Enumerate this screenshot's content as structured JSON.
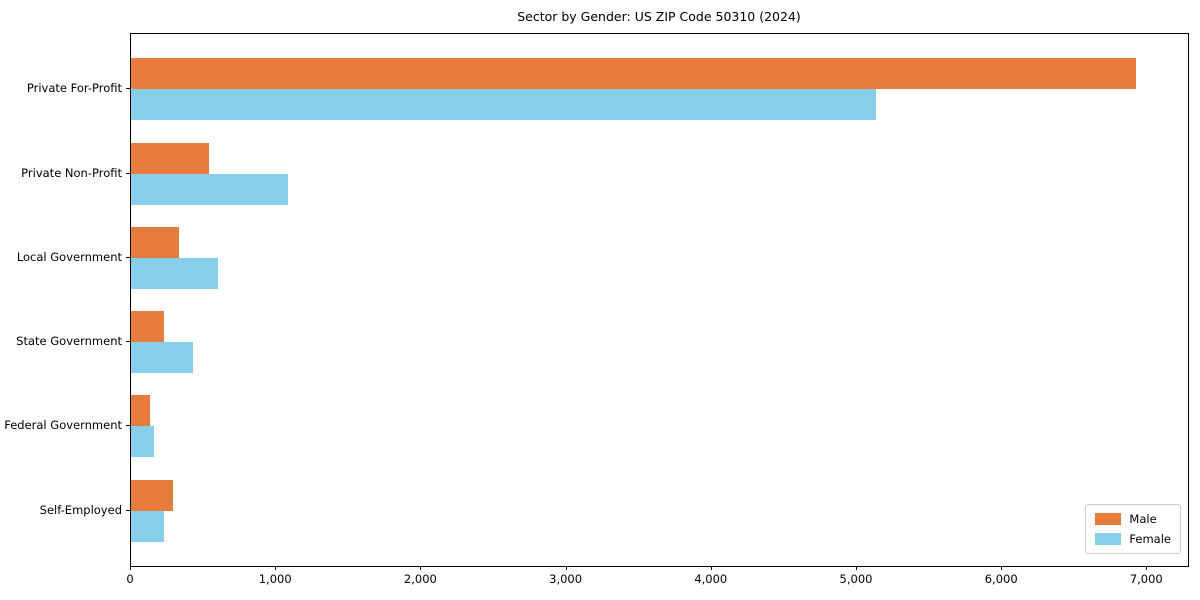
{
  "title": "Sector by Gender: US ZIP Code 50310 (2024)",
  "chart_data": {
    "type": "bar",
    "orientation": "horizontal",
    "title": "Sector by Gender: US ZIP Code 50310 (2024)",
    "xlabel": "",
    "ylabel": "",
    "categories": [
      "Private For-Profit",
      "Private Non-Profit",
      "Local Government",
      "State Government",
      "Federal Government",
      "Self-Employed"
    ],
    "series": [
      {
        "name": "Male",
        "color": "#E77C3C",
        "values": [
          6920,
          540,
          330,
          230,
          130,
          290
        ]
      },
      {
        "name": "Female",
        "color": "#87CEEB",
        "values": [
          5130,
          1080,
          600,
          430,
          155,
          230
        ]
      }
    ],
    "xlim": [
      0,
      7280
    ],
    "x_ticks": [
      0,
      1000,
      2000,
      3000,
      4000,
      5000,
      6000,
      7000
    ],
    "x_tick_labels": [
      "0",
      "1,000",
      "2,000",
      "3,000",
      "4,000",
      "5,000",
      "6,000",
      "7,000"
    ],
    "legend_position": "lower-right",
    "grid": false,
    "plot_background": "#ffffff",
    "spine_color": "#000000"
  }
}
